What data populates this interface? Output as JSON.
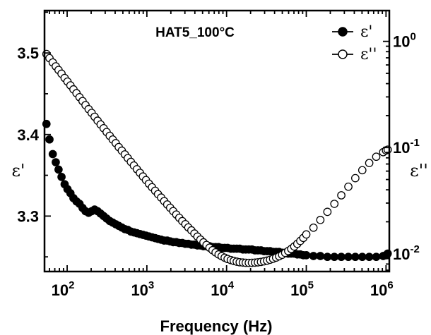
{
  "chart_data": {
    "type": "scatter",
    "title": "HAT5_100°C",
    "xlabel": "Frequency (Hz)",
    "x_scale": "log",
    "xlim": [
      52,
      1100000
    ],
    "x_ticks": [
      {
        "value": 100,
        "base": "10",
        "exp": "2"
      },
      {
        "value": 1000,
        "base": "10",
        "exp": "3"
      },
      {
        "value": 10000,
        "base": "10",
        "exp": "4"
      },
      {
        "value": 100000,
        "base": "10",
        "exp": "5"
      },
      {
        "value": 1000000,
        "base": "10",
        "exp": "6"
      }
    ],
    "left_axis": {
      "label": "ε'",
      "scale": "linear",
      "ylim": [
        3.232,
        3.552
      ],
      "ticks": [
        {
          "value": 3.3,
          "label": "3.3"
        },
        {
          "value": 3.4,
          "label": "3.4"
        },
        {
          "value": 3.5,
          "label": "3.5"
        }
      ]
    },
    "right_axis": {
      "label": "ε''",
      "scale": "log",
      "ylim": [
        0.0068,
        1.95
      ],
      "ticks": [
        {
          "value": 0.01,
          "base": "10",
          "exp": "-2"
        },
        {
          "value": 0.1,
          "base": "10",
          "exp": "-1"
        },
        {
          "value": 1,
          "base": "10",
          "exp": "0"
        }
      ]
    },
    "legend": {
      "position": "top-right",
      "entries": [
        {
          "label": "ε'",
          "marker": "filled-circle",
          "series": "eps_prime"
        },
        {
          "label": "ε''",
          "marker": "open-circle",
          "series": "eps_double_prime"
        }
      ]
    },
    "series": [
      {
        "id": "eps_prime",
        "name": "ε'",
        "axis": "left",
        "marker": "filled-circle",
        "color": "#000000",
        "points": [
          [
            55,
            3.413
          ],
          [
            60,
            3.394
          ],
          [
            66,
            3.376
          ],
          [
            72,
            3.366
          ],
          [
            78,
            3.357
          ],
          [
            85,
            3.348
          ],
          [
            93,
            3.339
          ],
          [
            101,
            3.333
          ],
          [
            110,
            3.328
          ],
          [
            120,
            3.322
          ],
          [
            131,
            3.318
          ],
          [
            143,
            3.315
          ],
          [
            156,
            3.31
          ],
          [
            170,
            3.306
          ],
          [
            186,
            3.304
          ],
          [
            203,
            3.306
          ],
          [
            221,
            3.308
          ],
          [
            241,
            3.306
          ],
          [
            263,
            3.303
          ],
          [
            287,
            3.3
          ],
          [
            313,
            3.297
          ],
          [
            342,
            3.294
          ],
          [
            373,
            3.292
          ],
          [
            407,
            3.29
          ],
          [
            444,
            3.288
          ],
          [
            485,
            3.286
          ],
          [
            529,
            3.284
          ],
          [
            577,
            3.283
          ],
          [
            630,
            3.281
          ],
          [
            688,
            3.28
          ],
          [
            750,
            3.279
          ],
          [
            819,
            3.278
          ],
          [
            893,
            3.277
          ],
          [
            975,
            3.276
          ],
          [
            1060,
            3.275
          ],
          [
            1160,
            3.274
          ],
          [
            1270,
            3.273
          ],
          [
            1380,
            3.272
          ],
          [
            1510,
            3.271
          ],
          [
            1650,
            3.27
          ],
          [
            1800,
            3.27
          ],
          [
            1960,
            3.269
          ],
          [
            2140,
            3.268
          ],
          [
            2340,
            3.268
          ],
          [
            2550,
            3.267
          ],
          [
            2780,
            3.267
          ],
          [
            3040,
            3.266
          ],
          [
            3310,
            3.266
          ],
          [
            3620,
            3.265
          ],
          [
            3950,
            3.265
          ],
          [
            4310,
            3.264
          ],
          [
            4700,
            3.264
          ],
          [
            5130,
            3.263
          ],
          [
            5600,
            3.263
          ],
          [
            6110,
            3.263
          ],
          [
            6670,
            3.262
          ],
          [
            7280,
            3.262
          ],
          [
            7940,
            3.262
          ],
          [
            8670,
            3.261
          ],
          [
            9460,
            3.261
          ],
          [
            10300,
            3.261
          ],
          [
            11300,
            3.26
          ],
          [
            12300,
            3.26
          ],
          [
            13400,
            3.26
          ],
          [
            14600,
            3.26
          ],
          [
            16000,
            3.259
          ],
          [
            17400,
            3.259
          ],
          [
            19000,
            3.259
          ],
          [
            20800,
            3.259
          ],
          [
            22700,
            3.258
          ],
          [
            24700,
            3.258
          ],
          [
            27000,
            3.258
          ],
          [
            29500,
            3.257
          ],
          [
            32200,
            3.257
          ],
          [
            35100,
            3.257
          ],
          [
            38300,
            3.256
          ],
          [
            41800,
            3.256
          ],
          [
            45600,
            3.256
          ],
          [
            49800,
            3.255
          ],
          [
            54300,
            3.255
          ],
          [
            59300,
            3.254
          ],
          [
            64700,
            3.254
          ],
          [
            70600,
            3.254
          ],
          [
            77100,
            3.253
          ],
          [
            84100,
            3.253
          ],
          [
            91800,
            3.252
          ],
          [
            100000,
            3.252
          ],
          [
            123000,
            3.251
          ],
          [
            150000,
            3.251
          ],
          [
            184000,
            3.25
          ],
          [
            225000,
            3.25
          ],
          [
            275000,
            3.25
          ],
          [
            337000,
            3.25
          ],
          [
            412000,
            3.25
          ],
          [
            504000,
            3.25
          ],
          [
            616000,
            3.25
          ],
          [
            754000,
            3.25
          ],
          [
            922000,
            3.251
          ],
          [
            1000000,
            3.252
          ],
          [
            1050000,
            3.254
          ]
        ]
      },
      {
        "id": "eps_double_prime",
        "name": "ε''",
        "axis": "right",
        "marker": "open-circle",
        "color": "#000000",
        "points": [
          [
            55,
            0.76
          ],
          [
            60,
            0.695
          ],
          [
            66,
            0.633
          ],
          [
            72,
            0.582
          ],
          [
            78,
            0.538
          ],
          [
            85,
            0.496
          ],
          [
            93,
            0.452
          ],
          [
            101,
            0.418
          ],
          [
            110,
            0.385
          ],
          [
            120,
            0.353
          ],
          [
            131,
            0.325
          ],
          [
            143,
            0.298
          ],
          [
            156,
            0.274
          ],
          [
            170,
            0.251
          ],
          [
            186,
            0.23
          ],
          [
            203,
            0.212
          ],
          [
            221,
            0.195
          ],
          [
            241,
            0.179
          ],
          [
            263,
            0.165
          ],
          [
            287,
            0.152
          ],
          [
            313,
            0.14
          ],
          [
            342,
            0.129
          ],
          [
            373,
            0.119
          ],
          [
            407,
            0.11
          ],
          [
            444,
            0.101
          ],
          [
            485,
            0.0935
          ],
          [
            529,
            0.0862
          ],
          [
            577,
            0.0795
          ],
          [
            630,
            0.0733
          ],
          [
            688,
            0.0677
          ],
          [
            750,
            0.0625
          ],
          [
            819,
            0.0578
          ],
          [
            893,
            0.0534
          ],
          [
            975,
            0.0494
          ],
          [
            1060,
            0.0457
          ],
          [
            1160,
            0.0423
          ],
          [
            1270,
            0.0392
          ],
          [
            1380,
            0.0364
          ],
          [
            1510,
            0.0338
          ],
          [
            1650,
            0.0313
          ],
          [
            1800,
            0.0291
          ],
          [
            1960,
            0.0271
          ],
          [
            2140,
            0.0252
          ],
          [
            2340,
            0.0234
          ],
          [
            2550,
            0.0218
          ],
          [
            2780,
            0.0203
          ],
          [
            3040,
            0.019
          ],
          [
            3310,
            0.0177
          ],
          [
            3620,
            0.0166
          ],
          [
            3950,
            0.0155
          ],
          [
            4310,
            0.0145
          ],
          [
            4700,
            0.0136
          ],
          [
            5130,
            0.0128
          ],
          [
            5600,
            0.0121
          ],
          [
            6110,
            0.0114
          ],
          [
            6670,
            0.0108
          ],
          [
            7280,
            0.0103
          ],
          [
            7940,
            0.00985
          ],
          [
            8670,
            0.00948
          ],
          [
            9460,
            0.00918
          ],
          [
            10300,
            0.00893
          ],
          [
            11300,
            0.00872
          ],
          [
            12300,
            0.00855
          ],
          [
            13400,
            0.00842
          ],
          [
            14600,
            0.00832
          ],
          [
            16000,
            0.00826
          ],
          [
            17400,
            0.00822
          ],
          [
            19000,
            0.00821
          ],
          [
            20800,
            0.00822
          ],
          [
            22700,
            0.00825
          ],
          [
            24700,
            0.0083
          ],
          [
            27000,
            0.00838
          ],
          [
            29500,
            0.00849
          ],
          [
            32200,
            0.00862
          ],
          [
            35100,
            0.00878
          ],
          [
            38300,
            0.00898
          ],
          [
            41800,
            0.0092
          ],
          [
            45600,
            0.00947
          ],
          [
            49800,
            0.00978
          ],
          [
            54300,
            0.0102
          ],
          [
            59300,
            0.0106
          ],
          [
            64700,
            0.0111
          ],
          [
            70600,
            0.0117
          ],
          [
            77100,
            0.0124
          ],
          [
            84100,
            0.0132
          ],
          [
            91800,
            0.0141
          ],
          [
            100000,
            0.0152
          ],
          [
            123000,
            0.0176
          ],
          [
            150000,
            0.0208
          ],
          [
            184000,
            0.0248
          ],
          [
            225000,
            0.0295
          ],
          [
            275000,
            0.0355
          ],
          [
            337000,
            0.0428
          ],
          [
            412000,
            0.0515
          ],
          [
            504000,
            0.0612
          ],
          [
            616000,
            0.0715
          ],
          [
            754000,
            0.082
          ],
          [
            922000,
            0.0905
          ],
          [
            1000000,
            0.094
          ],
          [
            1050000,
            0.0955
          ]
        ]
      }
    ]
  }
}
